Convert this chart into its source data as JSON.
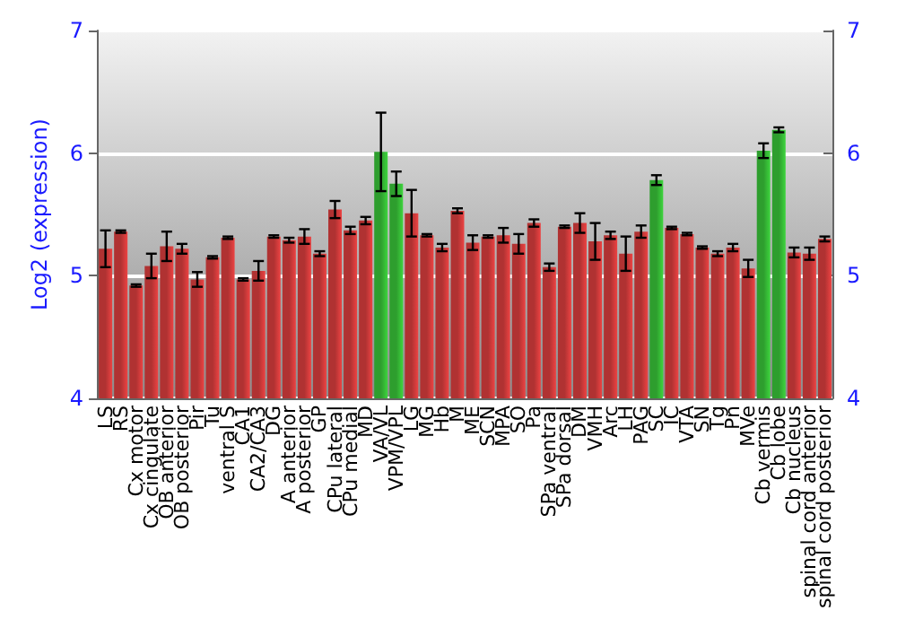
{
  "chart_data": {
    "type": "bar",
    "ylabel": "Log2 (expression)",
    "categories": [
      "LS",
      "RS",
      "Cx motor",
      "Cx cingulate",
      "OB anterior",
      "OB posterior",
      "Pir",
      "Tu",
      "ventral S",
      "CA1",
      "CA2/CA3",
      "DG",
      "A anterior",
      "A posterior",
      "GP",
      "CPu lateral",
      "CPu medial",
      "MD",
      "VA/VL",
      "VPM/VPL",
      "LG",
      "MG",
      "Hb",
      "M",
      "ME",
      "SCN",
      "MPA",
      "SO",
      "Pa",
      "SPa ventral",
      "SPa dorsal",
      "DM",
      "VMH",
      "Arc",
      "LH",
      "PAG",
      "SC",
      "IC",
      "VTA",
      "SN",
      "Tg",
      "Pn",
      "MVe",
      "Cb vermis",
      "Cb lobe",
      "Cb nucleus",
      "spinal cord anterior",
      "spinal cord posterior"
    ],
    "values": [
      5.22,
      5.36,
      4.92,
      5.08,
      5.24,
      5.22,
      4.97,
      5.15,
      5.31,
      4.97,
      5.04,
      5.32,
      5.29,
      5.32,
      5.18,
      5.54,
      5.37,
      5.45,
      6.01,
      5.75,
      5.51,
      5.33,
      5.23,
      5.53,
      5.27,
      5.32,
      5.33,
      5.26,
      5.43,
      5.07,
      5.4,
      5.43,
      5.28,
      5.33,
      5.18,
      5.36,
      5.78,
      5.39,
      5.34,
      5.23,
      5.18,
      5.23,
      5.06,
      6.02,
      6.19,
      5.19,
      5.18,
      5.3
    ],
    "errors": [
      0.15,
      0.01,
      0.01,
      0.1,
      0.12,
      0.04,
      0.06,
      0.01,
      0.01,
      0.01,
      0.08,
      0.01,
      0.02,
      0.06,
      0.02,
      0.07,
      0.03,
      0.03,
      0.32,
      0.1,
      0.19,
      0.01,
      0.03,
      0.02,
      0.06,
      0.01,
      0.06,
      0.08,
      0.03,
      0.03,
      0.01,
      0.08,
      0.15,
      0.03,
      0.14,
      0.05,
      0.04,
      0.01,
      0.01,
      0.01,
      0.02,
      0.03,
      0.07,
      0.06,
      0.02,
      0.04,
      0.05,
      0.02
    ],
    "colors": [
      "#b03232",
      "#b03232",
      "#b03232",
      "#b03232",
      "#b03232",
      "#b03232",
      "#b03232",
      "#b03232",
      "#b03232",
      "#b03232",
      "#b03232",
      "#b03232",
      "#b03232",
      "#b03232",
      "#b03232",
      "#b03232",
      "#b03232",
      "#b03232",
      "#2e9e2e",
      "#2e9e2e",
      "#b03232",
      "#b03232",
      "#b03232",
      "#b03232",
      "#b03232",
      "#b03232",
      "#b03232",
      "#b03232",
      "#b03232",
      "#b03232",
      "#b03232",
      "#b03232",
      "#b03232",
      "#b03232",
      "#b03232",
      "#b03232",
      "#2e9e2e",
      "#b03232",
      "#b03232",
      "#b03232",
      "#b03232",
      "#b03232",
      "#b03232",
      "#2e9e2e",
      "#2e9e2e",
      "#b03232",
      "#b03232",
      "#b03232"
    ],
    "ylim": [
      4,
      7
    ],
    "yticks": [
      4,
      5,
      6,
      7
    ],
    "y2lim": [
      4,
      7
    ],
    "y2ticks": [
      4,
      5,
      6,
      7
    ],
    "grid": "y"
  }
}
